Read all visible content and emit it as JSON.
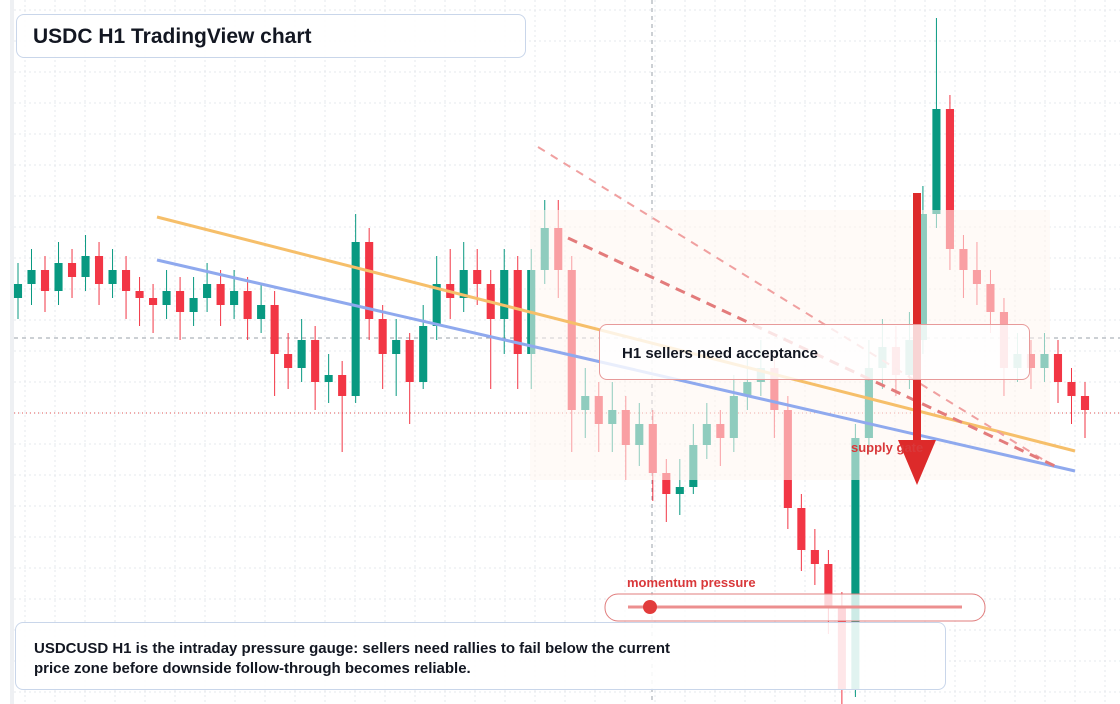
{
  "chart_data": {
    "type": "candlestick",
    "title": "USDC H1 TradingView chart",
    "callout": "H1 sellers need acceptance",
    "zone_label": "supply gate",
    "gauge_label": "momentum pressure",
    "caption": "USDCUSD H1 is the intraday pressure gauge: sellers need rallies to fail below the current price zone before downside follow-through becomes reliable.",
    "up_color": "#089981",
    "down_color": "#f23645",
    "ylim": [
      0,
      100
    ],
    "candles": [
      [
        58,
        63,
        55,
        60
      ],
      [
        60,
        65,
        57,
        62
      ],
      [
        62,
        64,
        56,
        59
      ],
      [
        59,
        66,
        57,
        63
      ],
      [
        63,
        65,
        58,
        61
      ],
      [
        61,
        67,
        59,
        64
      ],
      [
        64,
        66,
        57,
        60
      ],
      [
        60,
        65,
        58,
        62
      ],
      [
        62,
        64,
        55,
        59
      ],
      [
        59,
        61,
        54,
        58
      ],
      [
        58,
        60,
        53,
        57
      ],
      [
        57,
        62,
        55,
        59
      ],
      [
        59,
        61,
        52,
        56
      ],
      [
        56,
        61,
        54,
        58
      ],
      [
        58,
        63,
        56,
        60
      ],
      [
        60,
        62,
        54,
        57
      ],
      [
        57,
        62,
        55,
        59
      ],
      [
        59,
        61,
        52,
        55
      ],
      [
        55,
        60,
        53,
        57
      ],
      [
        57,
        59,
        44,
        50
      ],
      [
        50,
        53,
        45,
        48
      ],
      [
        48,
        55,
        46,
        52
      ],
      [
        52,
        54,
        42,
        46
      ],
      [
        46,
        50,
        43,
        47
      ],
      [
        47,
        49,
        36,
        44
      ],
      [
        44,
        70,
        43,
        66
      ],
      [
        66,
        68,
        52,
        55
      ],
      [
        55,
        57,
        45,
        50
      ],
      [
        50,
        55,
        44,
        52
      ],
      [
        52,
        53,
        40,
        46
      ],
      [
        46,
        57,
        45,
        54
      ],
      [
        54,
        64,
        52,
        60
      ],
      [
        60,
        65,
        55,
        58
      ],
      [
        58,
        66,
        56,
        62
      ],
      [
        62,
        65,
        57,
        60
      ],
      [
        60,
        62,
        45,
        55
      ],
      [
        55,
        65,
        50,
        62
      ],
      [
        62,
        64,
        45,
        50
      ],
      [
        50,
        65,
        45,
        62
      ],
      [
        62,
        72,
        60,
        68
      ],
      [
        68,
        72,
        58,
        62
      ],
      [
        62,
        64,
        36,
        42
      ],
      [
        42,
        48,
        38,
        44
      ],
      [
        44,
        46,
        36,
        40
      ],
      [
        40,
        46,
        36,
        42
      ],
      [
        42,
        44,
        32,
        37
      ],
      [
        37,
        43,
        34,
        40
      ],
      [
        40,
        42,
        29,
        33
      ],
      [
        33,
        35,
        26,
        30
      ],
      [
        30,
        35,
        27,
        31
      ],
      [
        31,
        40,
        30,
        37
      ],
      [
        37,
        43,
        35,
        40
      ],
      [
        40,
        42,
        34,
        38
      ],
      [
        38,
        47,
        36,
        44
      ],
      [
        44,
        50,
        42,
        46
      ],
      [
        46,
        52,
        44,
        48
      ],
      [
        48,
        50,
        38,
        42
      ],
      [
        42,
        44,
        25,
        28
      ],
      [
        28,
        30,
        19,
        22
      ],
      [
        22,
        25,
        17,
        20
      ],
      [
        20,
        22,
        10,
        14
      ],
      [
        14,
        16,
        0,
        2
      ],
      [
        2,
        40,
        1,
        38
      ],
      [
        38,
        52,
        36,
        48
      ],
      [
        48,
        55,
        45,
        51
      ],
      [
        51,
        54,
        44,
        47
      ],
      [
        47,
        56,
        45,
        52
      ],
      [
        52,
        74,
        50,
        70
      ],
      [
        70,
        98,
        68,
        85
      ],
      [
        85,
        87,
        62,
        65
      ],
      [
        65,
        67,
        58,
        62
      ],
      [
        62,
        66,
        57,
        60
      ],
      [
        60,
        62,
        53,
        56
      ],
      [
        56,
        58,
        44,
        48
      ],
      [
        48,
        53,
        46,
        50
      ],
      [
        50,
        52,
        45,
        48
      ],
      [
        48,
        53,
        46,
        50
      ],
      [
        50,
        52,
        43,
        46
      ],
      [
        46,
        48,
        40,
        44
      ],
      [
        44,
        46,
        38,
        42
      ]
    ]
  }
}
